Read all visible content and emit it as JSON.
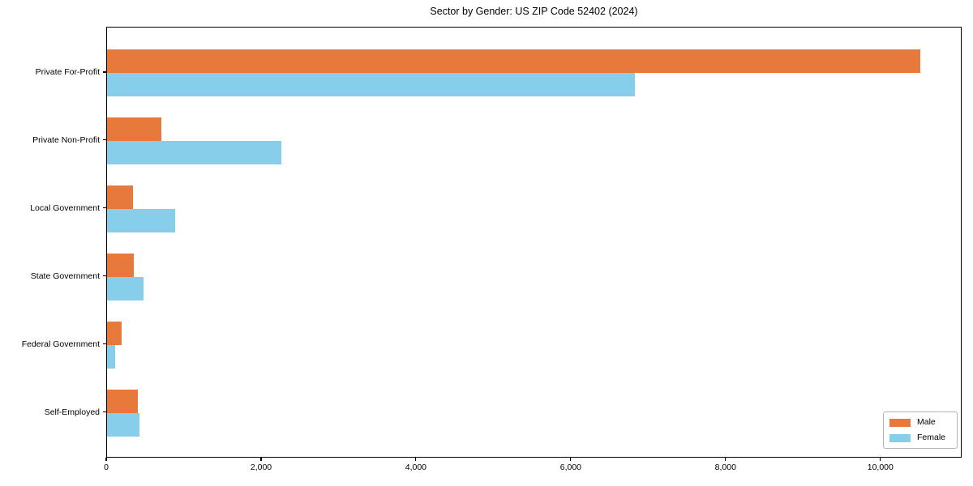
{
  "title": "Sector by Gender: US ZIP Code 52402 (2024)",
  "chart_data": {
    "type": "bar",
    "orientation": "horizontal",
    "title": "Sector by Gender: US ZIP Code 52402 (2024)",
    "xlabel": "",
    "ylabel": "",
    "categories": [
      "Private For-Profit",
      "Private Non-Profit",
      "Local Government",
      "State Government",
      "Federal Government",
      "Self-Employed"
    ],
    "series": [
      {
        "name": "Male",
        "color": "#E8793D",
        "values": [
          10500,
          700,
          330,
          340,
          190,
          400
        ]
      },
      {
        "name": "Female",
        "color": "#87CEEB",
        "values": [
          6820,
          2250,
          880,
          470,
          100,
          420
        ]
      }
    ],
    "xlim": [
      0,
      11050
    ],
    "x_ticks": [
      0,
      2000,
      4000,
      6000,
      8000,
      10000
    ],
    "x_tick_labels": [
      "0",
      "2,000",
      "4,000",
      "6,000",
      "8,000",
      "10,000"
    ],
    "grid": false,
    "legend_position": "lower right"
  },
  "legend": {
    "items": [
      {
        "label": "Male",
        "color": "#E8793D"
      },
      {
        "label": "Female",
        "color": "#87CEEB"
      }
    ]
  }
}
